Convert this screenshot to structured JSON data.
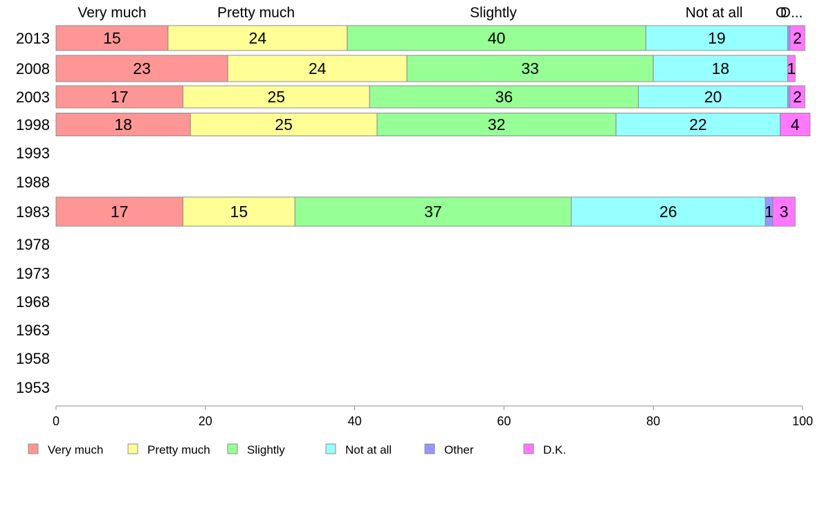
{
  "chart_data": {
    "type": "bar",
    "orientation": "horizontal",
    "stacked": true,
    "categories": [
      "2013",
      "2008",
      "2003",
      "1998",
      "1993",
      "1988",
      "1983",
      "1978",
      "1973",
      "1968",
      "1963",
      "1958",
      "1953"
    ],
    "series": [
      {
        "name": "Very much",
        "color": "#ff9696",
        "values": [
          15,
          23,
          17,
          18,
          null,
          null,
          17,
          null,
          null,
          null,
          null,
          null,
          null
        ]
      },
      {
        "name": "Pretty much",
        "color": "#ffff96",
        "values": [
          24,
          24,
          25,
          25,
          null,
          null,
          15,
          null,
          null,
          null,
          null,
          null,
          null
        ]
      },
      {
        "name": "Slightly",
        "color": "#96ff96",
        "values": [
          40,
          33,
          36,
          32,
          null,
          null,
          37,
          null,
          null,
          null,
          null,
          null,
          null
        ]
      },
      {
        "name": "Not at all",
        "color": "#96ffff",
        "values": [
          19,
          18,
          20,
          22,
          null,
          null,
          26,
          null,
          null,
          null,
          null,
          null,
          null
        ]
      },
      {
        "name": "Other",
        "color": "#9696ff",
        "values": [
          0.3,
          0,
          0.3,
          0,
          null,
          null,
          1,
          null,
          null,
          null,
          null,
          null,
          null
        ]
      },
      {
        "name": "D.K.",
        "color": "#ff78ff",
        "values": [
          2,
          1,
          2,
          4,
          null,
          null,
          3,
          null,
          null,
          null,
          null,
          null,
          null
        ]
      }
    ],
    "top_labels": [
      "Very much",
      "Pretty much",
      "Slightly",
      "Not at all",
      "O",
      "D..."
    ],
    "xlim": [
      0,
      100
    ],
    "xticks": [
      "0",
      "20",
      "40",
      "60",
      "80",
      "100"
    ],
    "grid": false,
    "legend": "bottom"
  }
}
